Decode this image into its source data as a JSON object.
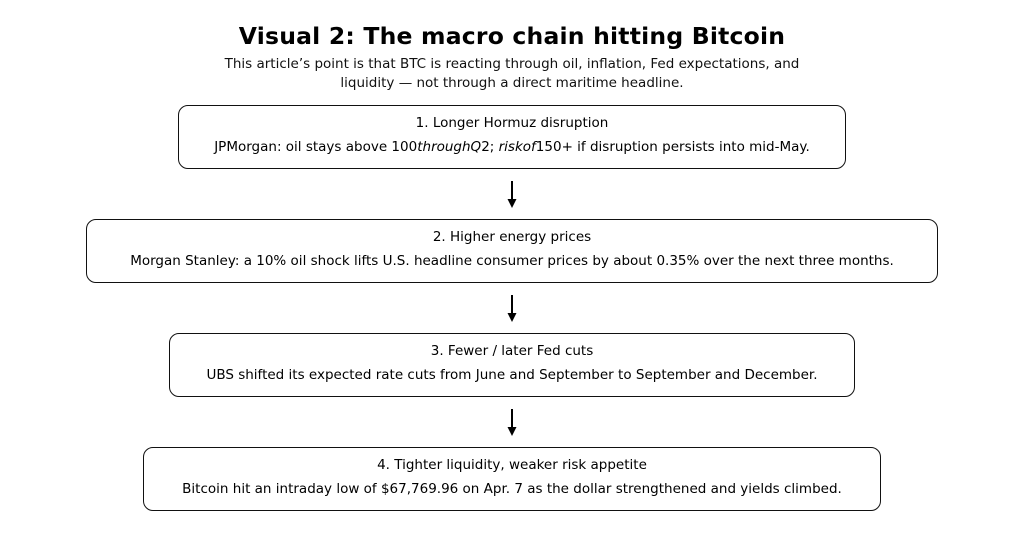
{
  "page": {
    "title": "Visual 2: The macro chain hitting Bitcoin",
    "subtitle_line1": "This article’s point is that BTC is reacting through oil, inflation, Fed expectations, and",
    "subtitle_line2": "liquidity — not through a direct maritime headline."
  },
  "flow": {
    "connector_glyph": "↓",
    "steps": [
      {
        "title": "1. Longer Hormuz disruption",
        "body_segments": [
          {
            "text": "JPMorgan: oil stays above 100",
            "italic": false
          },
          {
            "text": "throughQ",
            "italic": true
          },
          {
            "text": "2; ",
            "italic": false
          },
          {
            "text": "riskof",
            "italic": true
          },
          {
            "text": "150+ if disruption persists into mid-May.",
            "italic": false
          }
        ]
      },
      {
        "title": "2. Higher energy prices",
        "body_segments": [
          {
            "text": "Morgan Stanley: a 10% oil shock lifts U.S. headline consumer prices by about 0.35% over the next three months.",
            "italic": false
          }
        ]
      },
      {
        "title": "3. Fewer / later Fed cuts",
        "body_segments": [
          {
            "text": "UBS shifted its expected rate cuts from June and September to September and December.",
            "italic": false
          }
        ]
      },
      {
        "title": "4. Tighter liquidity, weaker risk appetite",
        "body_segments": [
          {
            "text": "Bitcoin hit an intraday low of $67,769.96 on Apr. 7 as the dollar strengthened and yields climbed.",
            "italic": false
          }
        ]
      }
    ]
  },
  "colors": {
    "background": "#ffffff",
    "text": "#000000",
    "box_border": "#111111"
  }
}
